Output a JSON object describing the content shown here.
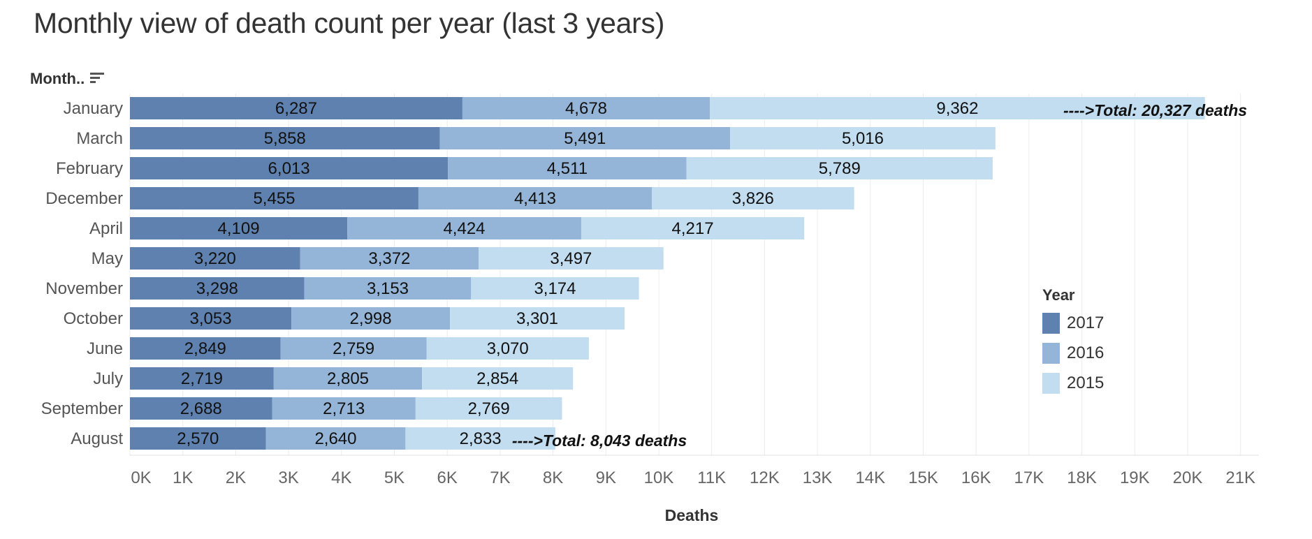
{
  "chart_data": {
    "type": "bar",
    "orientation": "horizontal",
    "stacked": true,
    "title": "Monthly view of death count per year (last 3 years)",
    "category_axis_label": "Month..",
    "xlabel": "Deaths",
    "xlim": [
      0,
      21000
    ],
    "x_ticks": [
      "0K",
      "1K",
      "2K",
      "3K",
      "4K",
      "5K",
      "6K",
      "7K",
      "8K",
      "9K",
      "10K",
      "11K",
      "12K",
      "13K",
      "14K",
      "15K",
      "16K",
      "17K",
      "18K",
      "19K",
      "20K",
      "21K"
    ],
    "grid": "vertical",
    "legend_title": "Year",
    "legend_position": "right",
    "categories": [
      "January",
      "March",
      "February",
      "December",
      "April",
      "May",
      "November",
      "October",
      "June",
      "July",
      "September",
      "August"
    ],
    "series": [
      {
        "name": "2017",
        "color": "#5e81b0",
        "values": [
          6287,
          5858,
          6013,
          5455,
          4109,
          3220,
          3298,
          3053,
          2849,
          2719,
          2688,
          2570
        ],
        "labels": [
          "6,287",
          "5,858",
          "6,013",
          "5,455",
          "4,109",
          "3,220",
          "3,298",
          "3,053",
          "2,849",
          "2,719",
          "2,688",
          "2,570"
        ]
      },
      {
        "name": "2016",
        "color": "#94b5d7",
        "values": [
          4678,
          5491,
          4511,
          4413,
          4424,
          3372,
          3153,
          2998,
          2759,
          2805,
          2713,
          2640
        ],
        "labels": [
          "4,678",
          "5,491",
          "4,511",
          "4,413",
          "4,424",
          "3,372",
          "3,153",
          "2,998",
          "2,759",
          "2,805",
          "2,713",
          "2,640"
        ]
      },
      {
        "name": "2015",
        "color": "#c2ddef",
        "values": [
          9362,
          5016,
          5789,
          3826,
          4217,
          3497,
          3174,
          3301,
          3070,
          2854,
          2769,
          2833
        ],
        "labels": [
          "9,362",
          "5,016",
          "5,789",
          "3,826",
          "4,217",
          "3,497",
          "3,174",
          "3,301",
          "3,070",
          "2,854",
          "2,769",
          "2,833"
        ]
      }
    ],
    "annotations": [
      {
        "category": "January",
        "text": "---->Total: 20,327 deaths"
      },
      {
        "category": "August",
        "text": "---->Total: 8,043 deaths"
      }
    ]
  }
}
